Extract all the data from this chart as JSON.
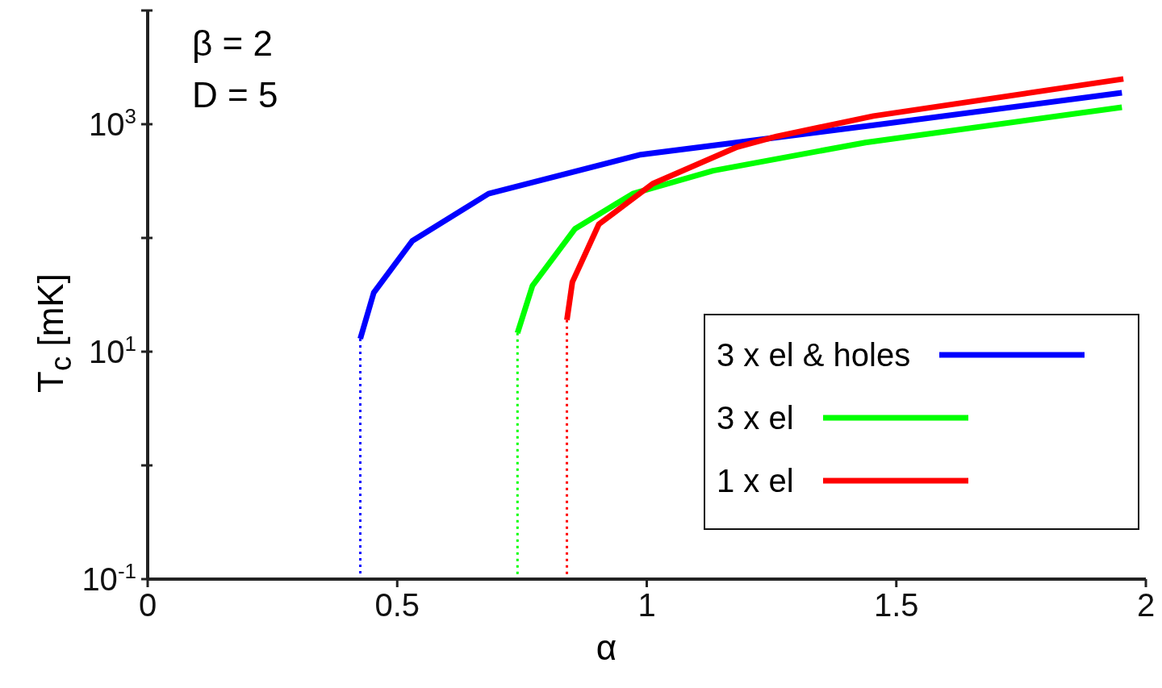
{
  "chart_data": {
    "type": "line",
    "xlabel": "α",
    "ylabel": "T$_{c}$ [mK]",
    "annotations": [
      "β = 2",
      "D = 5"
    ],
    "xlim": [
      0,
      2
    ],
    "xticks": [
      0,
      0.5,
      1,
      1.5,
      2
    ],
    "ylim": [
      0.1,
      10000
    ],
    "log": "y",
    "yticks": [
      {
        "value": 0.1,
        "label": "10$^{-1}$"
      },
      {
        "value": 1,
        "label": null
      },
      {
        "value": 10,
        "label": "10$^{1}$"
      },
      {
        "value": 100,
        "label": null
      },
      {
        "value": 1000,
        "label": "10$^{3}$"
      },
      {
        "value": 10000,
        "label": null
      }
    ],
    "grid": false,
    "legend": "bottom right",
    "marker": "none",
    "series": [
      {
        "name": "3 x el & holes",
        "color": "#0000ff",
        "line_style": "solid",
        "x": [
          0.426,
          0.453,
          0.53,
          0.683,
          0.988,
          1.47,
          1.952
        ],
        "values": [
          13,
          33,
          94,
          245,
          540,
          1000,
          1890
        ]
      },
      {
        "name": "3 x el",
        "color": "#00ff00",
        "line_style": "solid",
        "x": [
          0.741,
          0.771,
          0.856,
          0.972,
          1.133,
          1.438,
          1.952
        ],
        "values": [
          14.6,
          38,
          120,
          245,
          390,
          690,
          1410
        ]
      },
      {
        "name": "1 x el",
        "color": "#ff0000",
        "line_style": "solid",
        "x": [
          0.84,
          0.851,
          0.904,
          1.012,
          1.181,
          1.26,
          1.454,
          1.955
        ],
        "values": [
          19,
          41,
          132,
          300,
          630,
          780,
          1180,
          2500
        ]
      },
      {
        "color": "#0000ff",
        "line_style": "dotted",
        "x": [
          0.426,
          0.426
        ],
        "values": [
          13,
          0.1
        ]
      },
      {
        "color": "#00ff00",
        "line_style": "dotted",
        "x": [
          0.741,
          0.741
        ],
        "values": [
          14.6,
          0.1
        ]
      },
      {
        "color": "#ff0000",
        "line_style": "dotted",
        "x": [
          0.84,
          0.84
        ],
        "values": [
          19,
          0.1
        ]
      }
    ]
  }
}
